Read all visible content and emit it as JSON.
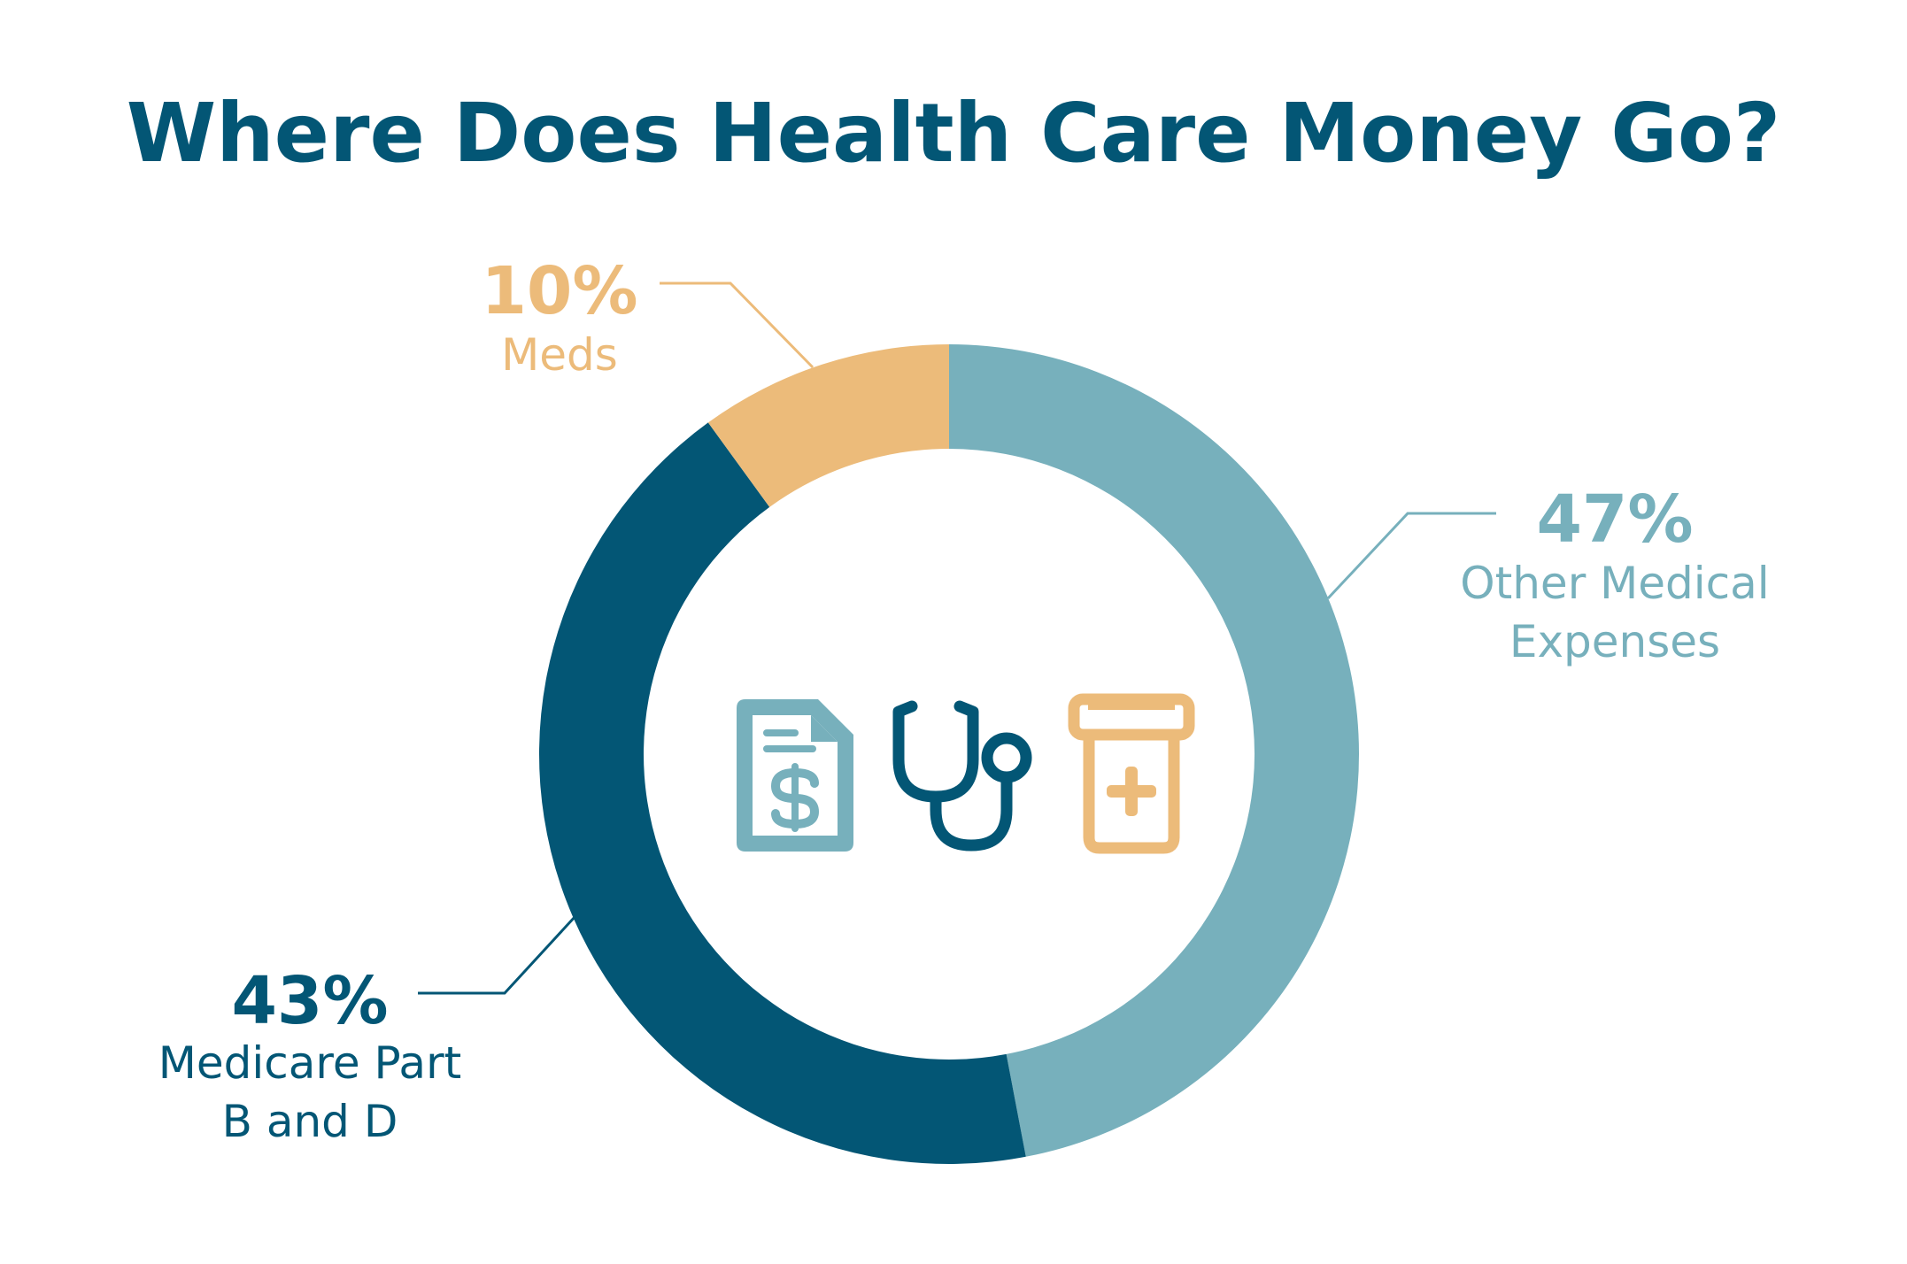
{
  "chart_data": {
    "type": "pie",
    "title": "Where Does Health Care Money Go?",
    "categories": [
      "Other Medical Expenses",
      "Medicare Part B and D",
      "Meds"
    ],
    "values": [
      47,
      43,
      10
    ],
    "value_labels": [
      "47%",
      "43%",
      "10%"
    ],
    "label_lines": [
      [
        "Other Medical",
        "Expenses"
      ],
      [
        "Medicare Part",
        "B and D"
      ],
      [
        "Meds"
      ]
    ],
    "colors": [
      "#77b0bc",
      "#035675",
      "#ecbb7a"
    ],
    "style": "donut",
    "center_icons": [
      "medical-bill-dollar-icon",
      "stethoscope-icon",
      "medicine-bottle-icon"
    ]
  },
  "colors": {
    "title": "#035675",
    "background": "#ffffff"
  }
}
